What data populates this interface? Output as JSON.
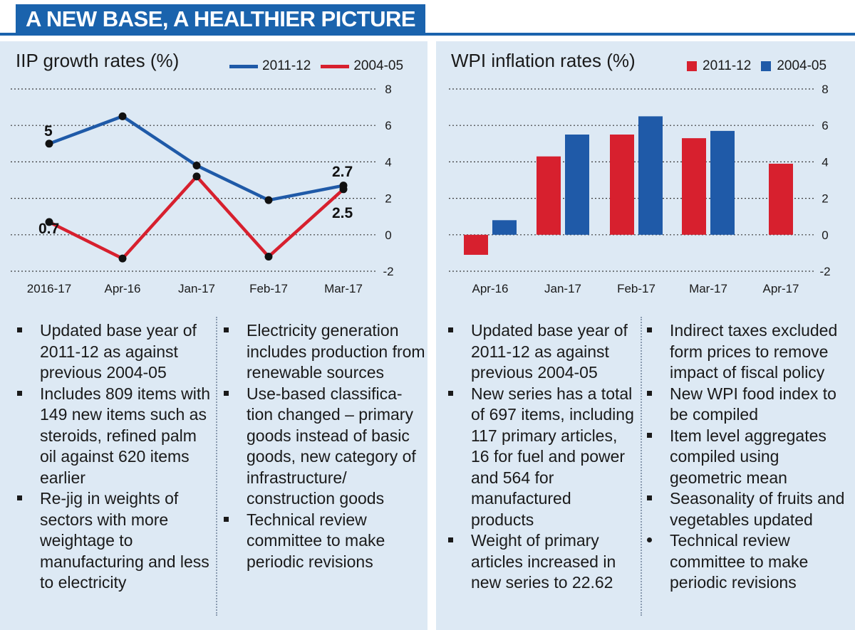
{
  "header": {
    "title": "A NEW BASE, A HEALTHIER PICTURE"
  },
  "colors": {
    "blue": "#1f5aa8",
    "red": "#d7202e",
    "header_bg": "#1a63ad",
    "panel_bg": "#dde9f4"
  },
  "chart_data": [
    {
      "type": "line",
      "title": "IIP growth rates  (%)",
      "categories": [
        "2016-17",
        "Apr-16",
        "Jan-17",
        "Feb-17",
        "Mar-17"
      ],
      "yticks": [
        "8",
        "6",
        "4",
        "2",
        "0",
        "-2"
      ],
      "ylim": [
        -2,
        8
      ],
      "legend": "top-right",
      "series": [
        {
          "name": "2011-12",
          "color": "#1f5aa8",
          "values": [
            5,
            6.5,
            3.8,
            1.9,
            2.7
          ]
        },
        {
          "name": "2004-05",
          "color": "#d7202e",
          "values": [
            0.7,
            -1.3,
            3.2,
            -1.2,
            2.5
          ]
        }
      ],
      "annotations": [
        "5",
        "0.7",
        "2.7",
        "2.5"
      ]
    },
    {
      "type": "bar",
      "title": "WPI inflation rates (%)",
      "categories": [
        "Apr-16",
        "Jan-17",
        "Feb-17",
        "Mar-17",
        "Apr-17"
      ],
      "yticks": [
        "8",
        "6",
        "4",
        "2",
        "0",
        "-2"
      ],
      "ylim": [
        -2,
        8
      ],
      "legend": "top-right",
      "series": [
        {
          "name": "2011-12",
          "color": "#d7202e",
          "values": [
            -1.1,
            4.3,
            5.5,
            5.3,
            3.9
          ]
        },
        {
          "name": "2004-05",
          "color": "#1f5aa8",
          "values": [
            0.8,
            5.5,
            6.5,
            5.7,
            null
          ]
        }
      ]
    }
  ],
  "notes": {
    "iip_col1": [
      "Updated base year of 2011-12 as against previous 2004-05",
      "Includes 809 items with 149 new items such as steroids, refined palm oil against 620 items earlier",
      "Re-jig in weights of sectors with more weightage to manufacturing and less to electricity"
    ],
    "iip_col2": [
      "Electricity generation includes production from renewable sources",
      "Use-based classifica-tion changed – primary goods instead of basic goods, new category of infrastructure/ construction goods",
      "Technical review committee to make periodic revisions"
    ],
    "wpi_col1": [
      "Updated base year of 2011-12 as against previous 2004-05",
      "New series has a total of 697 items, including 117 primary articles, 16 for fuel and power and 564 for manufactured products",
      "Weight of primary articles increased in new series to 22.62"
    ],
    "wpi_col2": [
      "Indirect taxes excluded form prices to remove impact of fiscal policy",
      "New WPI food index to be compiled",
      "Item level aggregates compiled using geometric mean",
      "Seasonality of fruits and vegetables updated",
      "Technical review committee to make periodic revisions"
    ]
  }
}
